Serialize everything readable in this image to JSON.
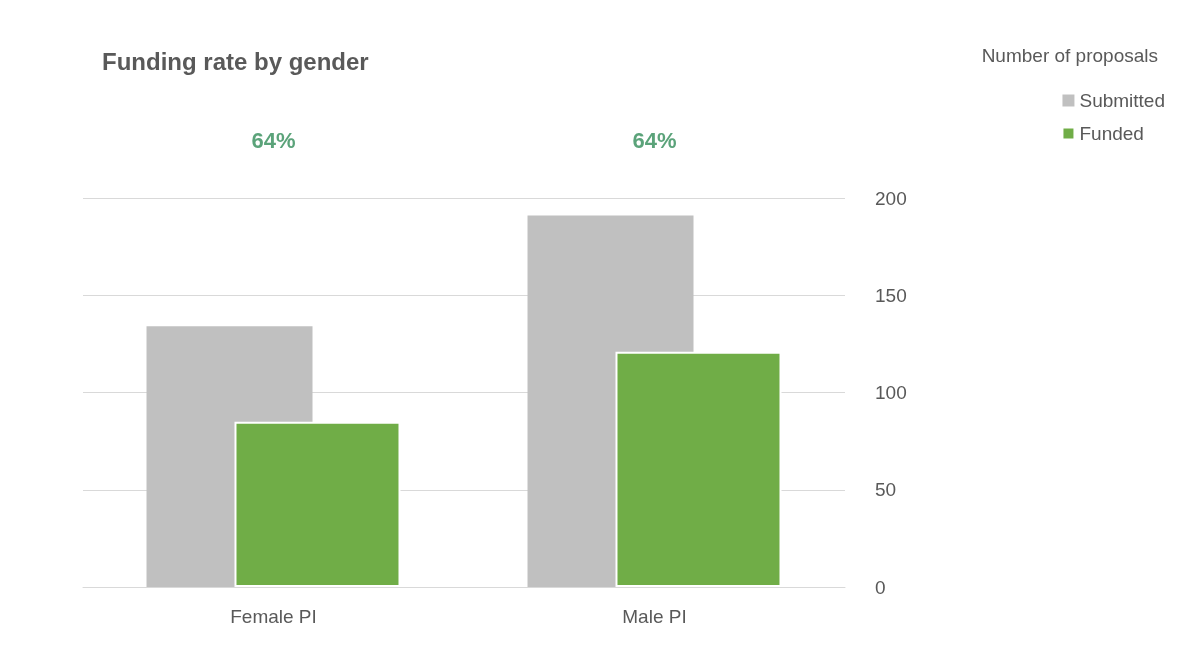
{
  "chart_data": {
    "type": "bar",
    "title": "Funding rate by gender",
    "legend_title": "Number of proposals",
    "categories": [
      "Female PI",
      "Male PI"
    ],
    "series": [
      {
        "name": "Submitted",
        "color": "#c0c0c0",
        "values": [
          134,
          191
        ]
      },
      {
        "name": "Funded",
        "color": "#70ad47",
        "values": [
          85,
          121
        ]
      }
    ],
    "ylim": [
      0,
      200
    ],
    "yticks": [
      0,
      50,
      100,
      150,
      200
    ],
    "grid": "y",
    "legend": "top right",
    "annotations": [
      "64%",
      "64%"
    ]
  }
}
